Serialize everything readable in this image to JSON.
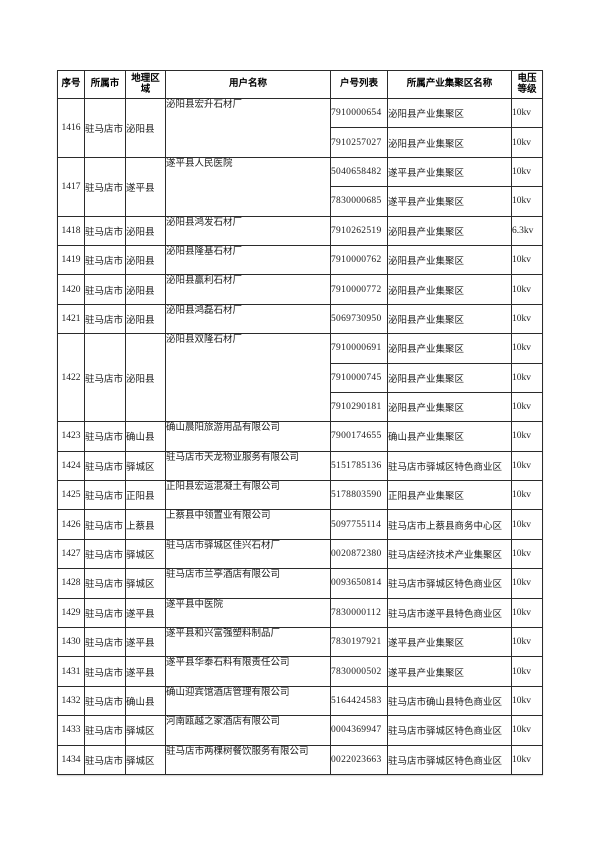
{
  "table": {
    "headers": [
      "序号",
      "所属市",
      "地理区域",
      "用户名称",
      "户号列表",
      "所属产业集聚区名称",
      "电压等级"
    ],
    "rows": [
      {
        "seq": "1416",
        "city": "驻马店市",
        "region": "泌阳县",
        "user": "泌阳县宏升石材厂",
        "accounts": [
          {
            "no": "7910000654",
            "cluster": "泌阳县产业集聚区",
            "voltage": "10kv"
          },
          {
            "no": "7910257027",
            "cluster": "泌阳县产业集聚区",
            "voltage": "10kv"
          }
        ]
      },
      {
        "seq": "1417",
        "city": "驻马店市",
        "region": "遂平县",
        "user": "遂平县人民医院",
        "accounts": [
          {
            "no": "5040658482",
            "cluster": "遂平县产业集聚区",
            "voltage": "10kv"
          },
          {
            "no": "7830000685",
            "cluster": "遂平县产业集聚区",
            "voltage": "10kv"
          }
        ]
      },
      {
        "seq": "1418",
        "city": "驻马店市",
        "region": "泌阳县",
        "user": "泌阳县鸿发石材厂",
        "accounts": [
          {
            "no": "7910262519",
            "cluster": "泌阳县产业集聚区",
            "voltage": "6.3kv"
          }
        ]
      },
      {
        "seq": "1419",
        "city": "驻马店市",
        "region": "泌阳县",
        "user": "泌阳县隆基石材厂",
        "accounts": [
          {
            "no": "7910000762",
            "cluster": "泌阳县产业集聚区",
            "voltage": "10kv"
          }
        ]
      },
      {
        "seq": "1420",
        "city": "驻马店市",
        "region": "泌阳县",
        "user": "泌阳县赢利石材厂",
        "accounts": [
          {
            "no": "7910000772",
            "cluster": "泌阳县产业集聚区",
            "voltage": "10kv"
          }
        ]
      },
      {
        "seq": "1421",
        "city": "驻马店市",
        "region": "泌阳县",
        "user": "泌阳县鸿磊石材厂",
        "accounts": [
          {
            "no": "5069730950",
            "cluster": "泌阳县产业集聚区",
            "voltage": "10kv"
          }
        ]
      },
      {
        "seq": "1422",
        "city": "驻马店市",
        "region": "泌阳县",
        "user": "泌阳县双隆石材厂",
        "accounts": [
          {
            "no": "7910000691",
            "cluster": "泌阳县产业集聚区",
            "voltage": "10kv"
          },
          {
            "no": "7910000745",
            "cluster": "泌阳县产业集聚区",
            "voltage": "10kv"
          },
          {
            "no": "7910290181",
            "cluster": "泌阳县产业集聚区",
            "voltage": "10kv"
          }
        ]
      },
      {
        "seq": "1423",
        "city": "驻马店市",
        "region": "确山县",
        "user": "确山晨阳旅游用品有限公司",
        "accounts": [
          {
            "no": "7900174655",
            "cluster": "确山县产业集聚区",
            "voltage": "10kv"
          }
        ]
      },
      {
        "seq": "1424",
        "city": "驻马店市",
        "region": "驿城区",
        "user": "驻马店市天龙物业服务有限公司",
        "accounts": [
          {
            "no": "5151785136",
            "cluster": "驻马店市驿城区特色商业区",
            "voltage": "10kv"
          }
        ]
      },
      {
        "seq": "1425",
        "city": "驻马店市",
        "region": "正阳县",
        "user": "正阳县宏运混凝土有限公司",
        "accounts": [
          {
            "no": "5178803590",
            "cluster": "正阳县产业集聚区",
            "voltage": "10kv"
          }
        ]
      },
      {
        "seq": "1426",
        "city": "驻马店市",
        "region": "上蔡县",
        "user": "上蔡县中领置业有限公司",
        "accounts": [
          {
            "no": "5097755114",
            "cluster": "驻马店市上蔡县商务中心区",
            "voltage": "10kv"
          }
        ]
      },
      {
        "seq": "1427",
        "city": "驻马店市",
        "region": "驿城区",
        "user": "驻马店市驿城区佳兴石材厂",
        "accounts": [
          {
            "no": "0020872380",
            "cluster": "驻马店经济技术产业集聚区",
            "voltage": "10kv"
          }
        ]
      },
      {
        "seq": "1428",
        "city": "驻马店市",
        "region": "驿城区",
        "user": "驻马店市兰亭酒店有限公司",
        "accounts": [
          {
            "no": "0093650814",
            "cluster": "驻马店市驿城区特色商业区",
            "voltage": "10kv"
          }
        ]
      },
      {
        "seq": "1429",
        "city": "驻马店市",
        "region": "遂平县",
        "user": "遂平县中医院",
        "accounts": [
          {
            "no": "7830000112",
            "cluster": "驻马店市遂平县特色商业区",
            "voltage": "10kv"
          }
        ]
      },
      {
        "seq": "1430",
        "city": "驻马店市",
        "region": "遂平县",
        "user": "遂平县和兴富强塑料制品厂",
        "accounts": [
          {
            "no": "7830197921",
            "cluster": "遂平县产业集聚区",
            "voltage": "10kv"
          }
        ]
      },
      {
        "seq": "1431",
        "city": "驻马店市",
        "region": "遂平县",
        "user": "遂平县华泰石料有限责任公司",
        "accounts": [
          {
            "no": "7830000502",
            "cluster": "遂平县产业集聚区",
            "voltage": "10kv"
          }
        ]
      },
      {
        "seq": "1432",
        "city": "驻马店市",
        "region": "确山县",
        "user": "确山迎宾馆酒店管理有限公司",
        "accounts": [
          {
            "no": "5164424583",
            "cluster": "驻马店市确山县特色商业区",
            "voltage": "10kv"
          }
        ]
      },
      {
        "seq": "1433",
        "city": "驻马店市",
        "region": "驿城区",
        "user": "河南瓯越之家酒店有限公司",
        "accounts": [
          {
            "no": "0004369947",
            "cluster": "驻马店市驿城区特色商业区",
            "voltage": "10kv"
          }
        ]
      },
      {
        "seq": "1434",
        "city": "驻马店市",
        "region": "驿城区",
        "user": "驻马店市两棵树餐饮服务有限公司",
        "accounts": [
          {
            "no": "0022023663",
            "cluster": "驻马店市驿城区特色商业区",
            "voltage": "10kv"
          }
        ]
      }
    ]
  }
}
